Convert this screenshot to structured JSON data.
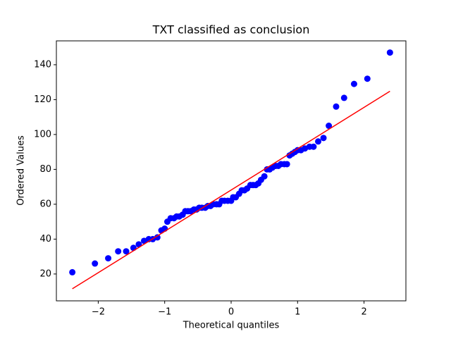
{
  "chart_data": {
    "type": "scatter",
    "title": "TXT classified as conclusion",
    "x_label": "Theoretical quantiles",
    "y_label": "Ordered Values",
    "xlim": [
      -2.63,
      2.63
    ],
    "ylim": [
      4.6,
      153.7
    ],
    "xticks": [
      {
        "value": -2,
        "label": "−2"
      },
      {
        "value": -1,
        "label": "−1"
      },
      0,
      1,
      2
    ],
    "yticks": [
      20,
      40,
      60,
      80,
      100,
      120,
      140
    ],
    "series": [
      {
        "color": "#0000ff",
        "x": [
          -2.39,
          -2.05,
          -1.85,
          -1.7,
          -1.58,
          -1.47,
          -1.39,
          -1.31,
          -1.24,
          -1.18,
          -1.11,
          -1.05,
          -1.0,
          -0.96,
          -0.91,
          -0.86,
          -0.82,
          -0.78,
          -0.73,
          -0.69,
          -0.65,
          -0.61,
          -0.56,
          -0.52,
          -0.48,
          -0.44,
          -0.39,
          -0.35,
          -0.31,
          -0.27,
          -0.22,
          -0.18,
          -0.14,
          -0.1,
          -0.05,
          0,
          0.03,
          0.07,
          0.12,
          0.16,
          0.2,
          0.24,
          0.29,
          0.33,
          0.37,
          0.41,
          0.45,
          0.5,
          0.54,
          0.58,
          0.62,
          0.67,
          0.71,
          0.75,
          0.8,
          0.84,
          0.88,
          0.92,
          0.96,
          1.0,
          1.05,
          1.11,
          1.18,
          1.24,
          1.31,
          1.39,
          1.47,
          1.58,
          1.7,
          1.85,
          2.05,
          2.39
        ],
        "values": [
          21,
          26,
          29,
          33,
          33,
          35,
          37,
          39,
          40,
          40,
          41,
          45,
          46,
          50,
          52,
          52,
          53,
          53,
          54,
          56,
          56,
          56,
          57,
          57,
          58,
          58,
          58,
          59,
          59,
          60,
          60,
          60,
          62,
          62,
          62,
          62,
          64,
          64,
          66,
          68,
          68,
          69,
          71,
          71,
          71,
          72,
          74,
          76,
          80,
          80,
          81,
          82,
          82,
          83,
          83,
          83,
          88,
          89,
          90,
          91,
          91,
          92,
          93,
          93,
          96,
          98,
          105,
          116,
          121,
          129,
          132,
          147
        ]
      },
      {
        "color": "#ff0000",
        "style": "line",
        "x": [
          -2.39,
          2.39
        ],
        "values": [
          11.5,
          124.8
        ]
      }
    ]
  }
}
